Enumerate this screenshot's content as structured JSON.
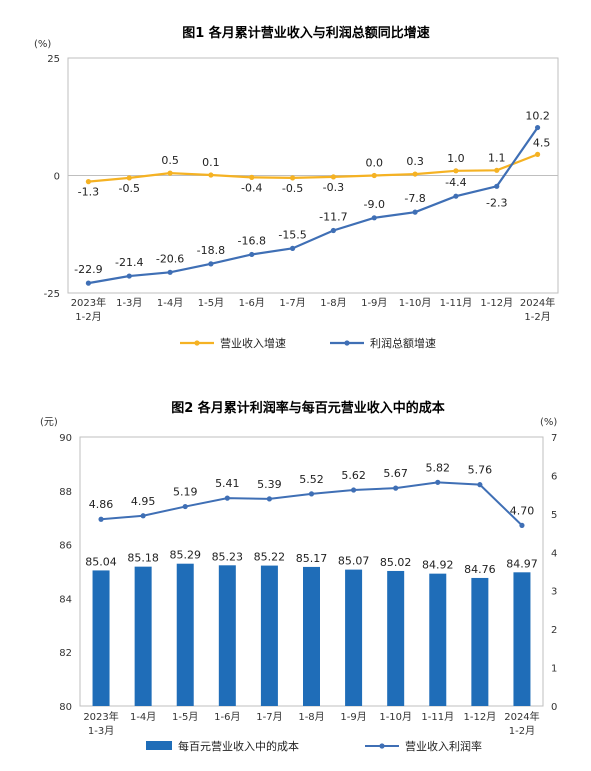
{
  "chart_data": [
    {
      "type": "line",
      "title": "图1  各月累计营业收入与利润总额同比增速",
      "ylabel": "(%)",
      "ylim": [
        -25,
        25
      ],
      "yticks": [
        25,
        0,
        -25
      ],
      "categories": [
        "2023年1-2月",
        "1-3月",
        "1-4月",
        "1-5月",
        "1-6月",
        "1-7月",
        "1-8月",
        "1-9月",
        "1-10月",
        "1-11月",
        "1-12月",
        "2024年1-2月"
      ],
      "series": [
        {
          "name": "营业收入增速",
          "color": "#F5B223",
          "values": [
            -1.3,
            -0.5,
            0.5,
            0.1,
            -0.4,
            -0.5,
            -0.3,
            0.0,
            0.3,
            1.0,
            1.1,
            4.5
          ],
          "labels": [
            "-1.3",
            "-0.5",
            "0.5",
            "0.1",
            "-0.4",
            "-0.5",
            "-0.3",
            "0.0",
            "0.3",
            "1.0",
            "1.1",
            "4.5"
          ]
        },
        {
          "name": "利润总额增速",
          "color": "#3F6FB5",
          "values": [
            -22.9,
            -21.4,
            -20.6,
            -18.8,
            -16.8,
            -15.5,
            -11.7,
            -9.0,
            -7.8,
            -4.4,
            -2.3,
            10.2
          ],
          "labels": [
            "-22.9",
            "-21.4",
            "-20.6",
            "-18.8",
            "-16.8",
            "-15.5",
            "-11.7",
            "-9.0",
            "-7.8",
            "-4.4",
            "-2.3",
            "10.2"
          ]
        }
      ],
      "grid": false,
      "legend": "bottom"
    },
    {
      "type": "bar",
      "title": "图2  各月累计利润率与每百元营业收入中的成本",
      "ylabel_left": "(元)",
      "ylabel_right": "(%)",
      "ylim_left": [
        80,
        90
      ],
      "yticks_left": [
        90,
        88,
        86,
        84,
        82,
        80
      ],
      "ylim_right": [
        0,
        7
      ],
      "yticks_right": [
        7,
        6,
        5,
        4,
        3,
        2,
        1,
        0
      ],
      "categories": [
        "2023年1-3月",
        "1-4月",
        "1-5月",
        "1-6月",
        "1-7月",
        "1-8月",
        "1-9月",
        "1-10月",
        "1-11月",
        "1-12月",
        "2024年1-2月"
      ],
      "series": [
        {
          "name": "每百元营业收入中的成本",
          "type": "bar",
          "axis": "left",
          "color": "#1F6DB8",
          "values": [
            85.04,
            85.18,
            85.29,
            85.23,
            85.22,
            85.17,
            85.07,
            85.02,
            84.92,
            84.76,
            84.97
          ],
          "labels": [
            "85.04",
            "85.18",
            "85.29",
            "85.23",
            "85.22",
            "85.17",
            "85.07",
            "85.02",
            "84.92",
            "84.76",
            "84.97"
          ]
        },
        {
          "name": "营业收入利润率",
          "type": "line",
          "axis": "right",
          "color": "#3F6FB5",
          "values": [
            4.86,
            4.95,
            5.19,
            5.41,
            5.39,
            5.52,
            5.62,
            5.67,
            5.82,
            5.76,
            4.7
          ],
          "labels": [
            "4.86",
            "4.95",
            "5.19",
            "5.41",
            "5.39",
            "5.52",
            "5.62",
            "5.67",
            "5.82",
            "5.76",
            "4.70"
          ]
        }
      ],
      "grid": false,
      "legend": "bottom"
    }
  ]
}
